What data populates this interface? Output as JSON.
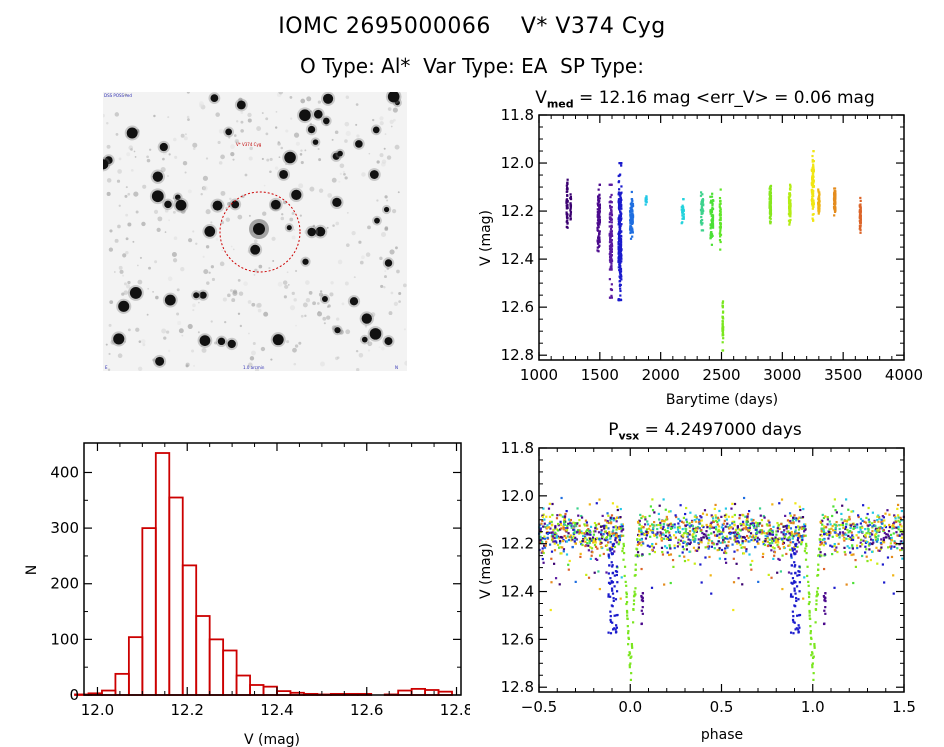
{
  "header": {
    "title_line1": "IOMC 2695000066    V* V374 Cyg",
    "title_line2": "O Type: Al*  Var Type: EA  SP Type:"
  },
  "finder_chart": {
    "label_top_left": "DSS POSS red",
    "label_target": "V* V374 Cyg",
    "label_bottom_center": "1.0 arcmin",
    "label_bottom_left": "E",
    "label_bottom_right": "N",
    "circle_color": "#cc0000"
  },
  "colors": {
    "histogram": "#cc0000",
    "axes": "#000000",
    "season_palette": [
      "#3a0070",
      "#4b0a8c",
      "#5a1aa0",
      "#1a1acc",
      "#1e6ee0",
      "#22c8e6",
      "#3cd28c",
      "#4ce036",
      "#86e61e",
      "#c8ec14",
      "#f0e614",
      "#f0b414",
      "#e48c1e",
      "#dc6428"
    ]
  },
  "chart_data": [
    {
      "id": "light_curve",
      "type": "scatter",
      "title": "V_med = 12.16 mag <err_V> = 0.06 mag",
      "title_main": "V",
      "title_sub": "med",
      "title_rest": " = 12.16 mag <err_V> = 0.06 mag",
      "xlabel": "Barytime (days)",
      "ylabel": "V (mag)",
      "xlim": [
        1000,
        4000
      ],
      "ylim": [
        12.82,
        11.8
      ],
      "y_inverted": true,
      "xticks": [
        1000,
        1500,
        2000,
        2500,
        3000,
        3500,
        4000
      ],
      "xtick_labels": [
        "1000",
        "1500",
        "2000",
        "2500",
        "3000",
        "3500",
        "4000"
      ],
      "yticks": [
        11.8,
        12.0,
        12.2,
        12.4,
        12.6,
        12.8
      ],
      "ytick_labels": [
        "11.8",
        "12.0",
        "12.2",
        "12.4",
        "12.6",
        "12.8"
      ],
      "seasons": [
        {
          "t": 1230,
          "width": 10,
          "vmin": 12.04,
          "vmax": 12.33,
          "color": "#3a0070",
          "n": 40
        },
        {
          "t": 1260,
          "width": 8,
          "vmin": 12.13,
          "vmax": 12.25,
          "color": "#3a0070",
          "n": 20
        },
        {
          "t": 1490,
          "width": 20,
          "vmin": 12.09,
          "vmax": 12.37,
          "color": "#4b0a8c",
          "n": 90
        },
        {
          "t": 1590,
          "width": 20,
          "vmin": 12.09,
          "vmax": 12.56,
          "color": "#5a1aa0",
          "n": 110
        },
        {
          "t": 1665,
          "width": 25,
          "vmin": 12.0,
          "vmax": 12.57,
          "color": "#1a1acc",
          "n": 200
        },
        {
          "t": 1760,
          "width": 25,
          "vmin": 12.12,
          "vmax": 12.32,
          "color": "#1e6ee0",
          "n": 80
        },
        {
          "t": 1880,
          "width": 10,
          "vmin": 12.13,
          "vmax": 12.18,
          "color": "#22c8e6",
          "n": 12
        },
        {
          "t": 2180,
          "width": 20,
          "vmin": 12.15,
          "vmax": 12.25,
          "color": "#22d2dc",
          "n": 25
        },
        {
          "t": 2340,
          "width": 20,
          "vmin": 12.11,
          "vmax": 12.28,
          "color": "#3cd28c",
          "n": 40
        },
        {
          "t": 2420,
          "width": 25,
          "vmin": 12.12,
          "vmax": 12.34,
          "color": "#4ce036",
          "n": 60
        },
        {
          "t": 2490,
          "width": 10,
          "vmin": 12.11,
          "vmax": 12.36,
          "color": "#60e628",
          "n": 40
        },
        {
          "t": 2510,
          "width": 6,
          "vmin": 12.57,
          "vmax": 12.78,
          "color": "#7ae61e",
          "n": 40
        },
        {
          "t": 2900,
          "width": 12,
          "vmin": 12.09,
          "vmax": 12.25,
          "color": "#86e61e",
          "n": 90
        },
        {
          "t": 3060,
          "width": 14,
          "vmin": 12.09,
          "vmax": 12.27,
          "color": "#b4ec14",
          "n": 70
        },
        {
          "t": 3250,
          "width": 18,
          "vmin": 11.95,
          "vmax": 12.24,
          "color": "#f0e614",
          "n": 100
        },
        {
          "t": 3300,
          "width": 12,
          "vmin": 12.1,
          "vmax": 12.21,
          "color": "#f0b414",
          "n": 50
        },
        {
          "t": 3430,
          "width": 12,
          "vmin": 12.1,
          "vmax": 12.22,
          "color": "#e48c1e",
          "n": 70
        },
        {
          "t": 3640,
          "width": 10,
          "vmin": 12.13,
          "vmax": 12.29,
          "color": "#dc6428",
          "n": 50
        }
      ]
    },
    {
      "id": "histogram",
      "type": "bar",
      "title": "",
      "xlabel": "V (mag)",
      "ylabel": "N",
      "xlim": [
        11.97,
        12.81
      ],
      "ylim": [
        0,
        453
      ],
      "xticks": [
        12.0,
        12.2,
        12.4,
        12.6,
        12.8
      ],
      "xtick_labels": [
        "12.0",
        "12.2",
        "12.4",
        "12.6",
        "12.8"
      ],
      "yticks": [
        0,
        100,
        200,
        300,
        400
      ],
      "ytick_labels": [
        "0",
        "100",
        "200",
        "300",
        "400"
      ],
      "bin_width": 0.03,
      "bin_starts": [
        11.95,
        11.98,
        12.01,
        12.04,
        12.07,
        12.1,
        12.13,
        12.16,
        12.19,
        12.22,
        12.25,
        12.28,
        12.31,
        12.34,
        12.37,
        12.4,
        12.43,
        12.46,
        12.49,
        12.52,
        12.55,
        12.58,
        12.61,
        12.64,
        12.67,
        12.7,
        12.73,
        12.76
      ],
      "values": [
        1,
        3,
        8,
        38,
        104,
        300,
        435,
        355,
        233,
        142,
        100,
        80,
        35,
        18,
        15,
        7,
        4,
        2,
        1,
        2,
        2,
        2,
        0,
        1,
        8,
        11,
        9,
        6
      ]
    },
    {
      "id": "phase_curve",
      "type": "scatter",
      "title": "P_vsx = 4.2497000 days",
      "title_main": "P",
      "title_sub": "vsx",
      "title_rest": " = 4.2497000 days",
      "xlabel": "phase",
      "ylabel": "V (mag)",
      "xlim": [
        -0.5,
        1.5
      ],
      "ylim": [
        12.82,
        11.8
      ],
      "y_inverted": true,
      "xticks": [
        -0.5,
        0.0,
        0.5,
        1.0,
        1.5
      ],
      "xtick_labels": [
        "−0.5",
        "0.0",
        "0.5",
        "1.0",
        "1.5"
      ],
      "yticks": [
        11.8,
        12.0,
        12.2,
        12.4,
        12.6,
        12.8
      ],
      "ytick_labels": [
        "11.8",
        "12.0",
        "12.2",
        "12.4",
        "12.6",
        "12.8"
      ],
      "period_days": 4.2497,
      "baseline_mag": 12.15,
      "primary_eclipse": {
        "phase": 0.0,
        "depth_mag": 0.6,
        "min_mag": 12.76,
        "half_width_phase": 0.04
      },
      "secondary_eclipse": {
        "phase": 0.5,
        "depth_mag": 0.0
      },
      "dip_feature": {
        "phase": -0.1,
        "min_mag": 12.58,
        "color": "#1a1acc"
      }
    }
  ]
}
